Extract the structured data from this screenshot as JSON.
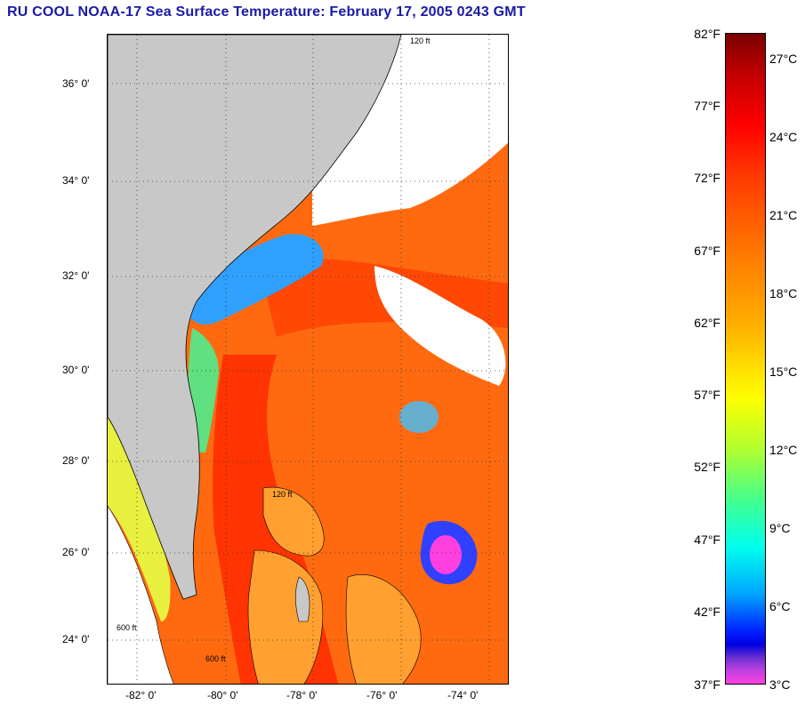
{
  "title": "RU COOL  NOAA-17  Sea Surface Temperature:  February 17, 2005 0243 GMT",
  "map": {
    "lat_labels": [
      "36° 0'",
      "34° 0'",
      "32° 0'",
      "30° 0'",
      "28° 0'",
      "26° 0'",
      "24° 0'"
    ],
    "lon_labels": [
      "-82° 0'",
      "-80° 0'",
      "-78° 0'",
      "-76° 0'",
      "-74° 0'"
    ],
    "contour_labels": [
      "120 ft",
      "600 ft",
      "120 ft",
      "600 ft"
    ],
    "colors": {
      "land": "#c8c8c8",
      "cloud": "#ffffff",
      "warm_sea": "#ff5a10",
      "gulf_stream": "#ff2a00",
      "cool_coastal": "#40c0ff",
      "bank": "#ffa030"
    }
  },
  "colorbar": {
    "fahrenheit_labels": [
      "82°F",
      "77°F",
      "72°F",
      "67°F",
      "62°F",
      "57°F",
      "52°F",
      "47°F",
      "42°F",
      "37°F"
    ],
    "celsius_labels": [
      "27°C",
      "24°C",
      "21°C",
      "18°C",
      "15°C",
      "12°C",
      "9°C",
      "6°C",
      "3°C"
    ]
  }
}
